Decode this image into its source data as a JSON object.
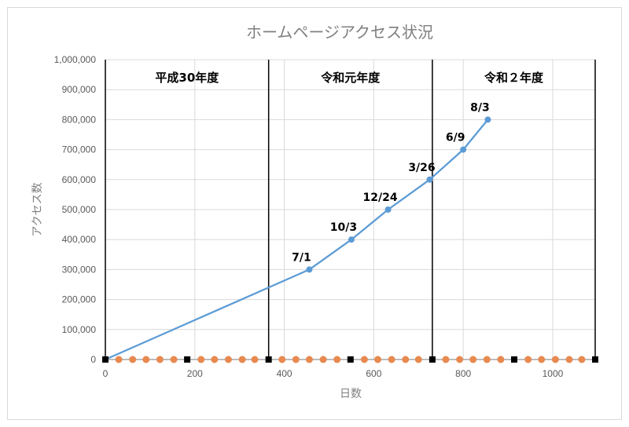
{
  "chart_data": {
    "type": "line",
    "title": "ホームページアクセス状況",
    "xlabel": "日数",
    "ylabel": "アクセス数",
    "xlim": [
      0,
      1095
    ],
    "ylim": [
      0,
      1000000
    ],
    "grid": true,
    "legend": "none",
    "x_ticks": [
      {
        "value": 0,
        "label": "0"
      },
      {
        "value": 200,
        "label": "200"
      },
      {
        "value": 400,
        "label": "400"
      },
      {
        "value": 600,
        "label": "600"
      },
      {
        "value": 800,
        "label": "800"
      },
      {
        "value": 1000,
        "label": "1000"
      }
    ],
    "y_ticks": [
      {
        "value": 0,
        "label": "0"
      },
      {
        "value": 100000,
        "label": "100,000"
      },
      {
        "value": 200000,
        "label": "200,000"
      },
      {
        "value": 300000,
        "label": "300,000"
      },
      {
        "value": 400000,
        "label": "400,000"
      },
      {
        "value": 500000,
        "label": "500,000"
      },
      {
        "value": 600000,
        "label": "600,000"
      },
      {
        "value": 700000,
        "label": "700,000"
      },
      {
        "value": 800000,
        "label": "800,000"
      },
      {
        "value": 900000,
        "label": "900,000"
      },
      {
        "value": 1000000,
        "label": "1,000,000"
      }
    ],
    "year_dividers": [
      0,
      365,
      731,
      1095
    ],
    "regions": [
      "平成30年度",
      "令和元年度",
      "令和２年度"
    ],
    "series": [
      {
        "style": "line-with-markers",
        "color": "#5b9bd5",
        "marker": "circle",
        "points": [
          {
            "x": 0,
            "y": 0
          },
          {
            "x": 456,
            "y": 300000,
            "label": "7/1"
          },
          {
            "x": 550,
            "y": 400000,
            "label": "10/3"
          },
          {
            "x": 632,
            "y": 500000,
            "label": "12/24"
          },
          {
            "x": 725,
            "y": 600000,
            "label": "3/26"
          },
          {
            "x": 800,
            "y": 700000,
            "label": "6/9"
          },
          {
            "x": 855,
            "y": 800000,
            "label": "8/3"
          }
        ]
      },
      {
        "style": "markers",
        "color": "#e8894f",
        "marker": "circle",
        "x": [
          30,
          61,
          91,
          122,
          153,
          214,
          244,
          275,
          306,
          334,
          395,
          426,
          456,
          487,
          518,
          579,
          609,
          640,
          671,
          700,
          761,
          792,
          822,
          853,
          884,
          945,
          975,
          1006,
          1037,
          1065
        ],
        "y": [
          0,
          0,
          0,
          0,
          0,
          0,
          0,
          0,
          0,
          0,
          0,
          0,
          0,
          0,
          0,
          0,
          0,
          0,
          0,
          0,
          0,
          0,
          0,
          0,
          0,
          0,
          0,
          0,
          0,
          0
        ]
      },
      {
        "style": "markers",
        "color": "#000000",
        "marker": "square",
        "x": [
          0,
          183,
          365,
          548,
          731,
          914,
          1095
        ],
        "y": [
          0,
          0,
          0,
          0,
          0,
          0,
          0
        ]
      }
    ]
  }
}
